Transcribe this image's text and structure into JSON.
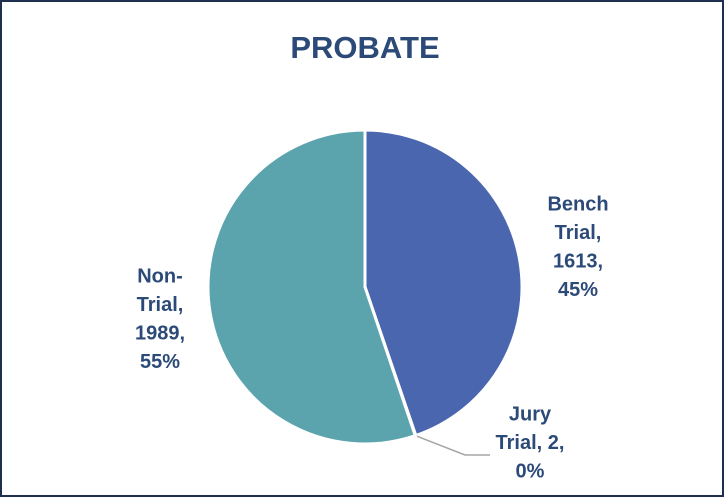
{
  "chart_data": {
    "type": "pie",
    "title": "PROBATE",
    "categories": [
      "Bench Trial",
      "Jury Trial",
      "Non-Trial"
    ],
    "values": [
      1613,
      2,
      1989
    ],
    "percents": [
      45,
      0,
      55
    ],
    "value_labels": [
      [
        "Bench",
        "Trial,",
        "1613,",
        "45%"
      ],
      [
        "Jury",
        "Trial, 2,",
        "0%"
      ],
      [
        "Non-",
        "Trial,",
        "1989,",
        "55%"
      ]
    ],
    "colors": [
      "#4a66ae",
      "#a5a5a5",
      "#5ba3ad"
    ]
  }
}
